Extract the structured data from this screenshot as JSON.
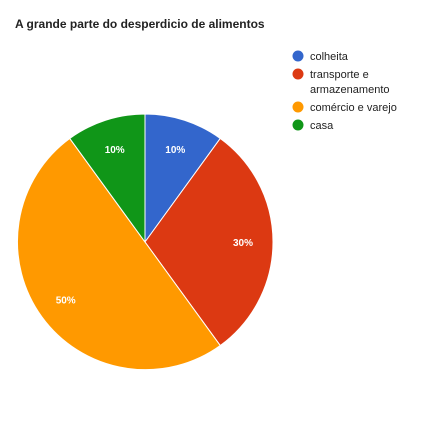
{
  "chart_data": {
    "type": "pie",
    "title": "A grande parte do desperdicio de alimentos",
    "slices": [
      {
        "label": "colheita",
        "legend_lines": [
          "colheita"
        ],
        "value": 10,
        "value_label": "10%",
        "color": "#3366cc"
      },
      {
        "label": "transporte e armazenamento",
        "legend_lines": [
          "transporte e",
          "armazenamento"
        ],
        "value": 30,
        "value_label": "30%",
        "color": "#dc3912"
      },
      {
        "label": "comércio e varejo",
        "legend_lines": [
          "comércio e varejo"
        ],
        "value": 50,
        "value_label": "50%",
        "color": "#ff9900"
      },
      {
        "label": "casa",
        "legend_lines": [
          "casa"
        ],
        "value": 10,
        "value_label": "10%",
        "color": "#109618"
      }
    ],
    "legend_position": "right",
    "start_angle": "top",
    "direction": "clockwise"
  }
}
